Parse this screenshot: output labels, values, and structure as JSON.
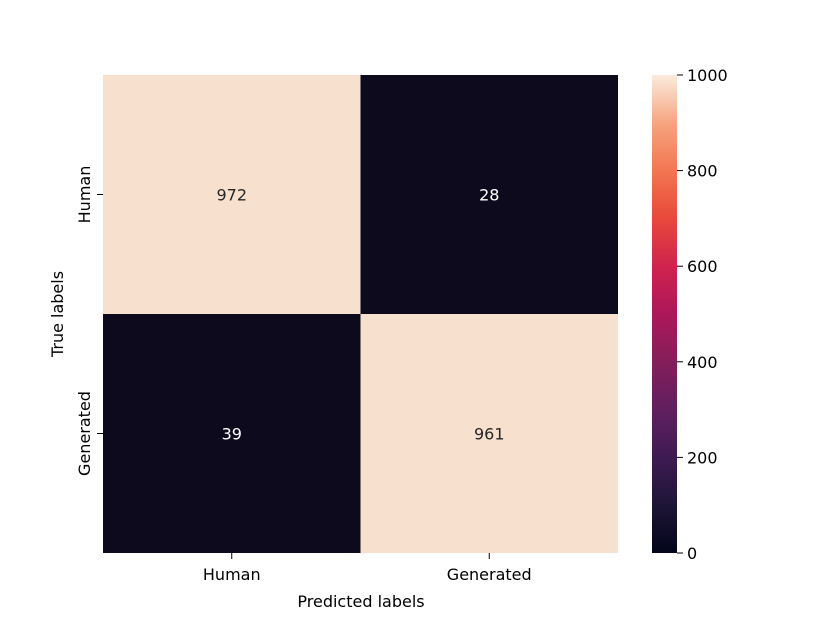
{
  "chart_data": {
    "type": "heatmap",
    "title": "",
    "xlabel": "Predicted labels",
    "ylabel": "True labels",
    "x_categories": [
      "Human",
      "Generated"
    ],
    "y_categories": [
      "Human",
      "Generated"
    ],
    "values": [
      [
        972,
        28
      ],
      [
        39,
        961
      ]
    ],
    "cell_labels": [
      [
        "972",
        "28"
      ],
      [
        "39",
        "961"
      ]
    ],
    "colorbar": {
      "range": [
        0,
        1000
      ],
      "ticks": [
        "0",
        "200",
        "400",
        "600",
        "800",
        "1000"
      ],
      "colormap": "rocket"
    },
    "colors": {
      "high": "#f7e0ce",
      "low": "#0e0a1e",
      "text_on_dark": "#ffffff",
      "text_on_light": "#262626"
    }
  }
}
